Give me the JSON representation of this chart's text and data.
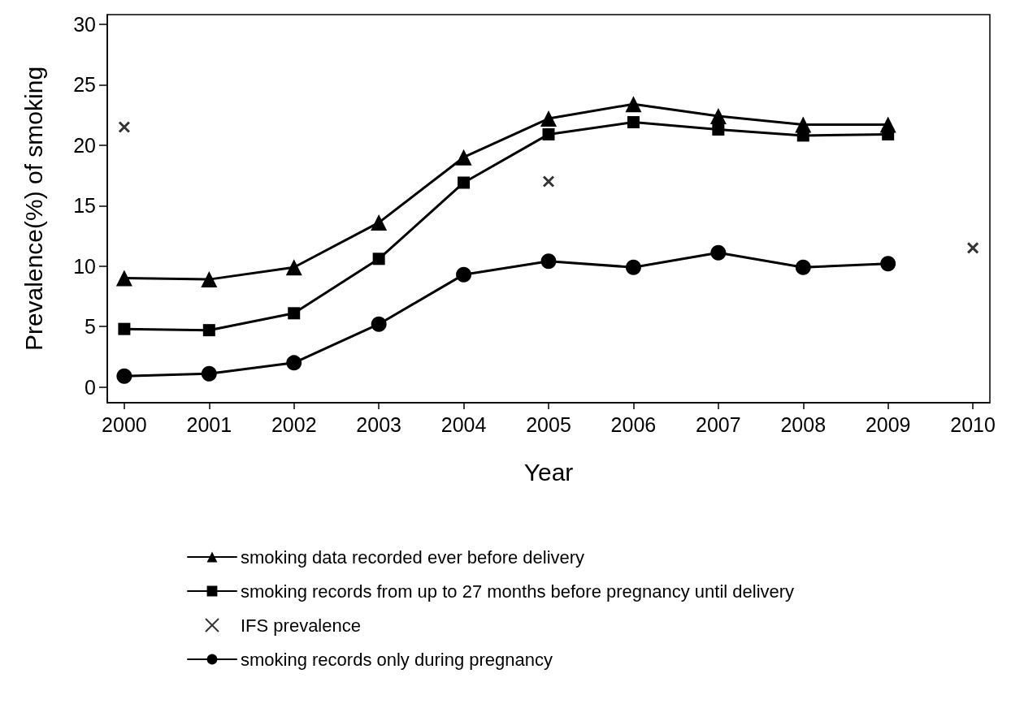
{
  "chart_data": {
    "type": "line",
    "xlabel": "Year",
    "ylabel": "Prevalence(%) of smoking",
    "x": [
      2000,
      2001,
      2002,
      2003,
      2004,
      2005,
      2006,
      2007,
      2008,
      2009
    ],
    "series": [
      {
        "name": "smoking data recorded ever before delivery",
        "color": "#000000",
        "marker": "triangle",
        "values": [
          9.0,
          8.9,
          9.9,
          13.6,
          19.0,
          22.2,
          23.4,
          22.4,
          21.7,
          21.7
        ]
      },
      {
        "name": "smoking records from up to 27 months before pregnancy until delivery",
        "color": "#000000",
        "marker": "square",
        "values": [
          4.8,
          4.7,
          6.1,
          10.6,
          16.9,
          20.9,
          21.9,
          21.3,
          20.8,
          20.9
        ]
      },
      {
        "name": "IFS prevalence",
        "type": "scatter",
        "color": "#000000",
        "marker": "cross",
        "x": [
          2000,
          2005,
          2010
        ],
        "values": [
          21.5,
          17.0,
          11.5
        ]
      },
      {
        "name": "smoking records only during pregnancy",
        "color": "#000000",
        "marker": "circle",
        "values": [
          0.9,
          1.1,
          2.0,
          5.2,
          9.3,
          10.4,
          9.9,
          11.1,
          9.9,
          10.2
        ]
      }
    ],
    "xlim": [
      1999.8,
      2010.2
    ],
    "xticks": [
      2000,
      2001,
      2002,
      2003,
      2004,
      2005,
      2006,
      2007,
      2008,
      2009,
      2010
    ],
    "ylim": [
      -1.3,
      30.8
    ],
    "yticks": [
      0,
      5,
      10,
      15,
      20,
      25,
      30
    ],
    "grid": false,
    "legend": "bottom",
    "line_style": "solid"
  }
}
